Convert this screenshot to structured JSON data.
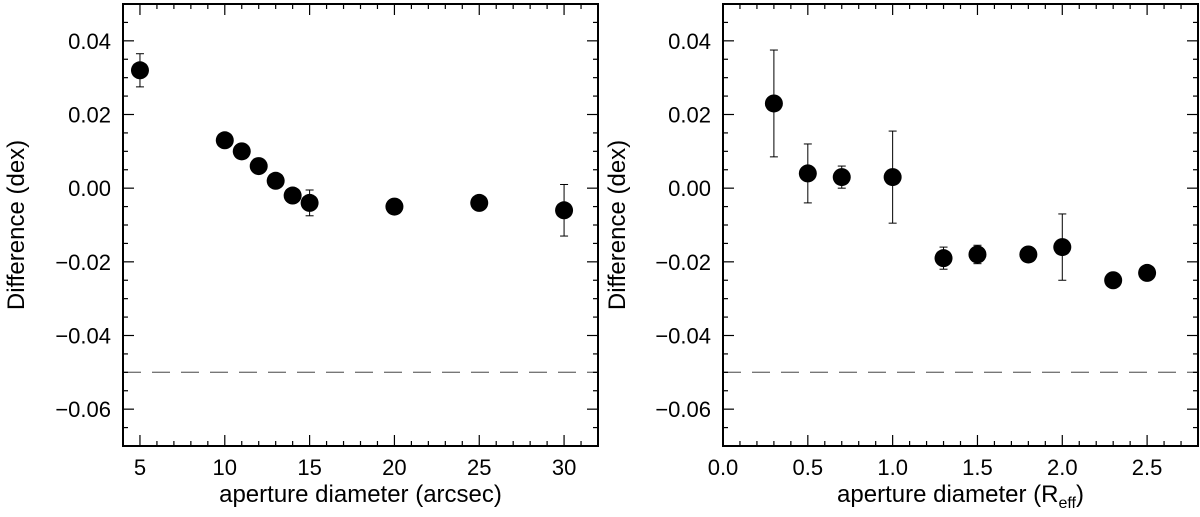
{
  "chart_data": [
    {
      "type": "scatter",
      "xlabel": "aperture diameter (arcsec)",
      "ylabel": "Difference (dex)",
      "xlim": [
        4,
        32
      ],
      "ylim": [
        -0.07,
        0.05
      ],
      "xticks": [
        5,
        10,
        15,
        20,
        25,
        30
      ],
      "xtick_labels": [
        "5",
        "10",
        "15",
        "20",
        "25",
        "30"
      ],
      "yticks": [
        0.04,
        0.02,
        0.0,
        -0.02,
        -0.04,
        -0.06
      ],
      "ytick_labels": [
        "0.04",
        "0.02",
        "0.00",
        "−0.02",
        "−0.04",
        "−0.06"
      ],
      "reference_line": -0.05,
      "points": [
        {
          "x": 5,
          "y": 0.032,
          "err": 0.0045
        },
        {
          "x": 10,
          "y": 0.013,
          "err": null
        },
        {
          "x": 11,
          "y": 0.01,
          "err": null
        },
        {
          "x": 12,
          "y": 0.006,
          "err": null
        },
        {
          "x": 13,
          "y": 0.002,
          "err": null
        },
        {
          "x": 14,
          "y": -0.002,
          "err": null
        },
        {
          "x": 15,
          "y": -0.004,
          "err": 0.0035
        },
        {
          "x": 20,
          "y": -0.005,
          "err": null
        },
        {
          "x": 25,
          "y": -0.004,
          "err": null
        },
        {
          "x": 30,
          "y": -0.006,
          "err": 0.007
        }
      ]
    },
    {
      "type": "scatter",
      "xlabel_main": "aperture diameter (R",
      "xlabel_sub": "eff",
      "xlabel_close": ")",
      "ylabel": "Difference (dex)",
      "xlim": [
        0.0,
        2.8
      ],
      "ylim": [
        -0.07,
        0.05
      ],
      "xticks": [
        0.0,
        0.5,
        1.0,
        1.5,
        2.0,
        2.5
      ],
      "xtick_labels": [
        "0.0",
        "0.5",
        "1.0",
        "1.5",
        "2.0",
        "2.5"
      ],
      "yticks": [
        0.04,
        0.02,
        0.0,
        -0.02,
        -0.04,
        -0.06
      ],
      "ytick_labels": [
        "0.04",
        "0.02",
        "0.00",
        "−0.02",
        "−0.04",
        "−0.06"
      ],
      "reference_line": -0.05,
      "points": [
        {
          "x": 0.3,
          "y": 0.023,
          "err": 0.0145
        },
        {
          "x": 0.5,
          "y": 0.004,
          "err": 0.008
        },
        {
          "x": 0.7,
          "y": 0.003,
          "err": 0.003
        },
        {
          "x": 1.0,
          "y": 0.003,
          "err": 0.0125
        },
        {
          "x": 1.3,
          "y": -0.019,
          "err": 0.003
        },
        {
          "x": 1.5,
          "y": -0.018,
          "err": 0.0025
        },
        {
          "x": 1.8,
          "y": -0.018,
          "err": null
        },
        {
          "x": 2.0,
          "y": -0.016,
          "err": 0.009
        },
        {
          "x": 2.3,
          "y": -0.025,
          "err": null
        },
        {
          "x": 2.5,
          "y": -0.023,
          "err": null
        }
      ]
    }
  ]
}
